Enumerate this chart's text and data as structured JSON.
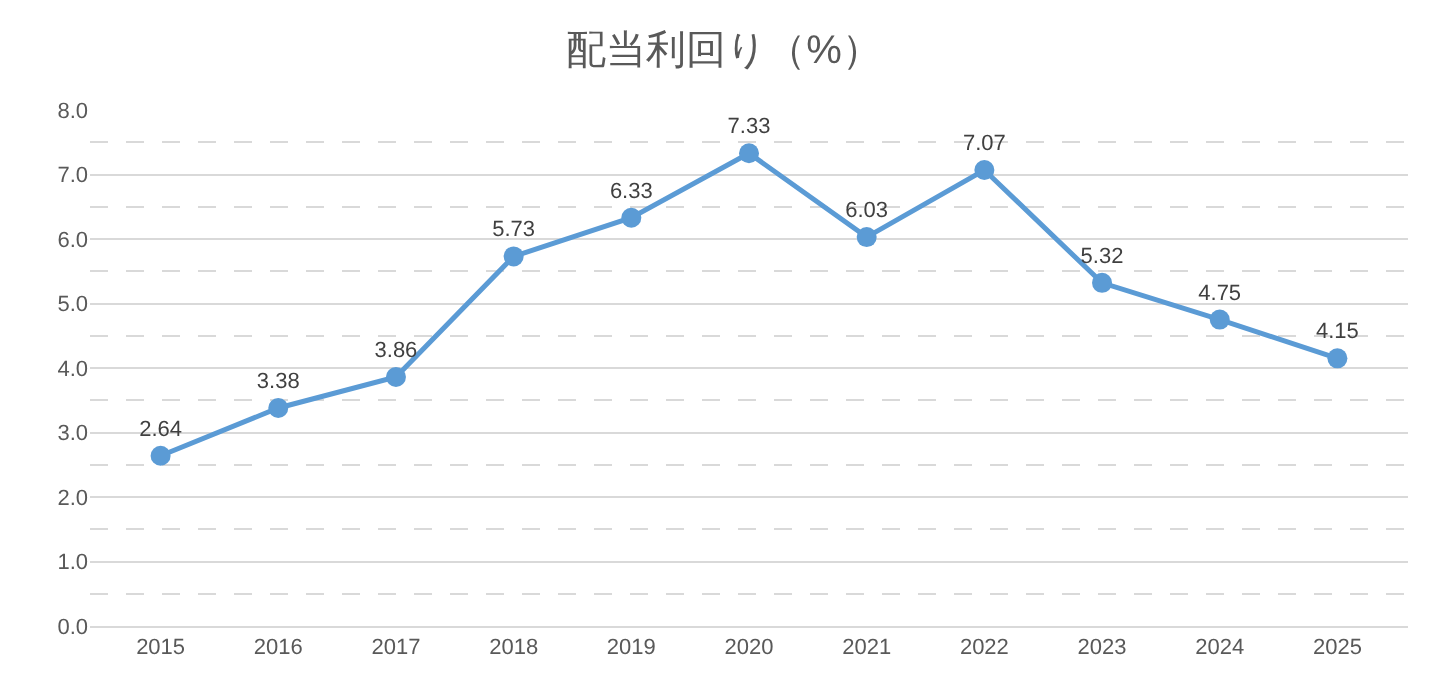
{
  "chart_data": {
    "type": "line",
    "title": "配当利回り（%）",
    "categories": [
      "2015",
      "2016",
      "2017",
      "2018",
      "2019",
      "2020",
      "2021",
      "2022",
      "2023",
      "2024",
      "2025"
    ],
    "series": [
      {
        "color": "#5b9bd5",
        "values": [
          2.64,
          3.38,
          3.86,
          5.73,
          6.33,
          7.33,
          6.03,
          7.07,
          5.32,
          4.75,
          4.15
        ]
      }
    ],
    "ylim": [
      0,
      8
    ],
    "yticks": [
      {
        "value": 0,
        "label": "0.0"
      },
      {
        "value": 1,
        "label": "1.0"
      },
      {
        "value": 2,
        "label": "2.0"
      },
      {
        "value": 3,
        "label": "3.0"
      },
      {
        "value": 4,
        "label": "4.0"
      },
      {
        "value": 5,
        "label": "5.0"
      },
      {
        "value": 6,
        "label": "6.0"
      },
      {
        "value": 7,
        "label": "7.0"
      },
      {
        "value": 8,
        "label": "8.0"
      }
    ],
    "grid": "y",
    "marker": "circle",
    "line_style": "solid",
    "data_labels": true
  }
}
